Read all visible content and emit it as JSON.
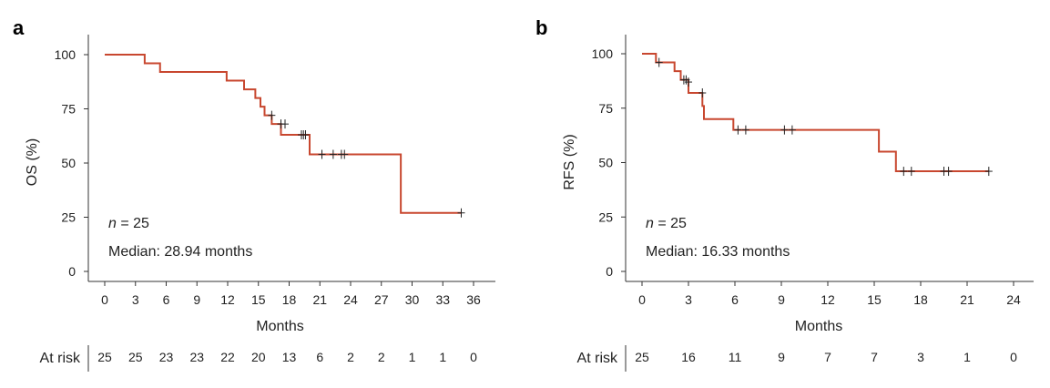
{
  "chart_data": [
    {
      "panel": "a",
      "type": "line",
      "subtype": "kaplan-meier",
      "xlabel": "Months",
      "ylabel": "OS (%)",
      "xlim": [
        0,
        36
      ],
      "ylim": [
        0,
        100
      ],
      "xticks": [
        0,
        3,
        6,
        9,
        12,
        15,
        18,
        21,
        24,
        27,
        30,
        33,
        36
      ],
      "yticks": [
        0,
        25,
        50,
        75,
        100
      ],
      "annotations": {
        "n_prefix": "n",
        "n_value": " = 25",
        "median": "Median: 28.94 months"
      },
      "color": "#c8472f",
      "steps": [
        [
          0,
          100
        ],
        [
          3.9,
          96
        ],
        [
          5.4,
          92
        ],
        [
          11.9,
          88
        ],
        [
          13.6,
          84
        ],
        [
          14.7,
          80
        ],
        [
          15.2,
          76
        ],
        [
          15.6,
          72
        ],
        [
          16.3,
          68
        ],
        [
          17.2,
          63
        ],
        [
          20.0,
          54
        ],
        [
          28.9,
          27
        ],
        [
          34.8,
          27
        ]
      ],
      "censored": [
        [
          16.3,
          72
        ],
        [
          17.2,
          68
        ],
        [
          17.6,
          68
        ],
        [
          19.2,
          63
        ],
        [
          19.4,
          63
        ],
        [
          19.6,
          63
        ],
        [
          21.2,
          54
        ],
        [
          22.3,
          54
        ],
        [
          23.1,
          54
        ],
        [
          23.4,
          54
        ],
        [
          34.8,
          27
        ]
      ],
      "at_risk": {
        "label": "At risk",
        "x": [
          0,
          3,
          6,
          9,
          12,
          15,
          18,
          21,
          24,
          27,
          30,
          33,
          36
        ],
        "values": [
          "25",
          "25",
          "23",
          "23",
          "22",
          "20",
          "13",
          "6",
          "2",
          "2",
          "1",
          "1",
          "0"
        ]
      }
    },
    {
      "panel": "b",
      "type": "line",
      "subtype": "kaplan-meier",
      "xlabel": "Months",
      "ylabel": "RFS (%)",
      "xlim": [
        0,
        24
      ],
      "ylim": [
        0,
        100
      ],
      "xticks": [
        0,
        3,
        6,
        9,
        12,
        15,
        18,
        21,
        24
      ],
      "yticks": [
        0,
        25,
        50,
        75,
        100
      ],
      "annotations": {
        "n_prefix": "n",
        "n_value": " = 25",
        "median": "Median: 16.33 months"
      },
      "color": "#c8472f",
      "steps": [
        [
          0,
          100
        ],
        [
          0.9,
          96
        ],
        [
          2.1,
          92
        ],
        [
          2.5,
          88
        ],
        [
          3.0,
          82
        ],
        [
          3.9,
          76
        ],
        [
          4.0,
          70
        ],
        [
          5.9,
          65
        ],
        [
          15.3,
          55
        ],
        [
          16.4,
          46
        ],
        [
          22.4,
          46
        ]
      ],
      "censored": [
        [
          1.1,
          96
        ],
        [
          2.7,
          88
        ],
        [
          2.85,
          88
        ],
        [
          3.0,
          87
        ],
        [
          3.9,
          82
        ],
        [
          6.2,
          65
        ],
        [
          6.7,
          65
        ],
        [
          9.2,
          65
        ],
        [
          9.7,
          65
        ],
        [
          16.9,
          46
        ],
        [
          17.4,
          46
        ],
        [
          19.5,
          46
        ],
        [
          19.8,
          46
        ],
        [
          22.4,
          46
        ]
      ],
      "at_risk": {
        "label": "At risk",
        "x": [
          0,
          3,
          6,
          9,
          12,
          15,
          18,
          21,
          24
        ],
        "values": [
          "25",
          "16",
          "11",
          "9",
          "7",
          "7",
          "3",
          "1",
          "0"
        ]
      }
    }
  ]
}
